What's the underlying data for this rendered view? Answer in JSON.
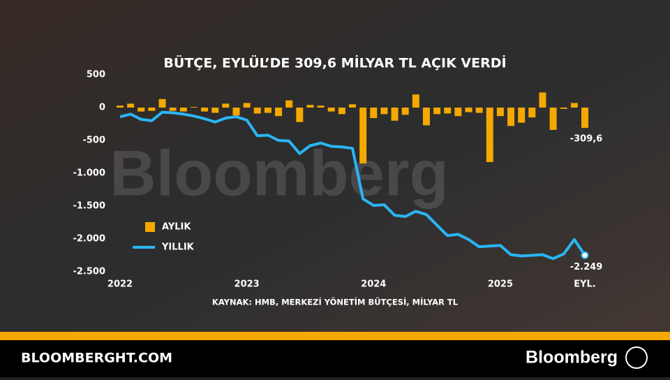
{
  "chart_data": {
    "type": "bar-line",
    "title": "BÜTÇE, EYLÜL’DE 309,6 MİLYAR TL AÇIK VERDİ",
    "source": "KAYNAK: HMB, MERKEZİ YÖNETİM BÜTÇESİ, MİLYAR TL",
    "watermark": "Bloomberg",
    "categories": [
      "2022",
      null,
      null,
      null,
      null,
      null,
      null,
      null,
      null,
      null,
      null,
      null,
      "2023",
      null,
      null,
      null,
      null,
      null,
      null,
      null,
      null,
      null,
      null,
      null,
      "2024",
      null,
      null,
      null,
      null,
      null,
      null,
      null,
      null,
      null,
      null,
      null,
      "2025",
      null,
      null,
      null,
      null,
      null,
      null,
      null,
      "EYL."
    ],
    "series": [
      {
        "name": "AYLIK",
        "type": "bar",
        "color": "#f5a800",
        "values": [
          30,
          60,
          -60,
          -50,
          130,
          -50,
          -60,
          10,
          -60,
          -80,
          60,
          -120,
          70,
          -90,
          -80,
          -130,
          110,
          -220,
          40,
          30,
          -60,
          -100,
          50,
          -850,
          -160,
          -100,
          -200,
          -110,
          200,
          -270,
          -100,
          -90,
          -130,
          -70,
          -80,
          -830,
          -130,
          -280,
          -230,
          -150,
          230,
          -340,
          -20,
          70,
          -309.6
        ],
        "value_labels": [
          null,
          null,
          null,
          null,
          null,
          null,
          null,
          null,
          null,
          null,
          null,
          null,
          null,
          null,
          null,
          null,
          null,
          null,
          null,
          null,
          null,
          null,
          null,
          null,
          null,
          null,
          null,
          null,
          null,
          null,
          null,
          null,
          null,
          null,
          null,
          null,
          null,
          null,
          null,
          null,
          null,
          null,
          null,
          null,
          "-309,6"
        ]
      },
      {
        "name": "YILLIK",
        "type": "line",
        "color": "#29b6f6",
        "values": [
          -140,
          -100,
          -180,
          -200,
          -70,
          -80,
          -100,
          -130,
          -170,
          -220,
          -160,
          -140,
          -190,
          -430,
          -420,
          -500,
          -510,
          -700,
          -580,
          -540,
          -590,
          -600,
          -620,
          -1390,
          -1490,
          -1480,
          -1640,
          -1660,
          -1580,
          -1630,
          -1790,
          -1950,
          -1930,
          -2010,
          -2120,
          -2110,
          -2100,
          -2240,
          -2260,
          -2250,
          -2240,
          -2300,
          -2230,
          -2010,
          -2249
        ],
        "value_labels": [
          null,
          null,
          null,
          null,
          null,
          null,
          null,
          null,
          null,
          null,
          null,
          null,
          null,
          null,
          null,
          null,
          null,
          null,
          null,
          null,
          null,
          null,
          null,
          null,
          null,
          null,
          null,
          null,
          null,
          null,
          null,
          null,
          null,
          null,
          null,
          null,
          null,
          null,
          null,
          null,
          null,
          null,
          null,
          null,
          "-2.249"
        ]
      }
    ],
    "ylim": [
      -2500,
      500
    ],
    "yticks": [
      500,
      0,
      -500,
      {
        "value": -1000,
        "label": "-1.000"
      },
      {
        "value": -1500,
        "label": "-1.500"
      },
      {
        "value": -2000,
        "label": "-2.000"
      },
      {
        "value": -2500,
        "label": "-2.500"
      }
    ],
    "grid": false
  },
  "footer": {
    "site": "BLOOMBERGHT.COM",
    "brand": "Bloomberg"
  }
}
